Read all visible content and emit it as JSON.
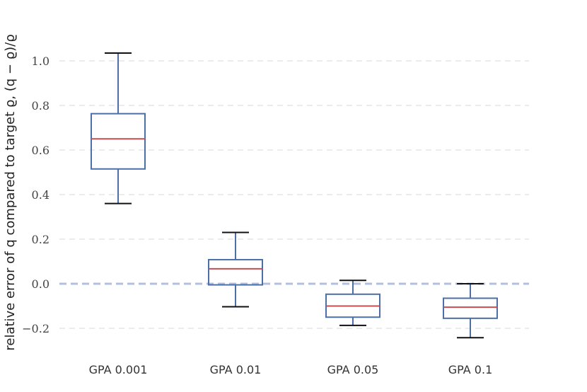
{
  "chart_data": {
    "type": "box",
    "categories": [
      "GPA 0.001",
      "GPA 0.01",
      "GPA 0.05",
      "GPA 0.1"
    ],
    "boxes": [
      {
        "whisker_low": 0.36,
        "q1": 0.515,
        "median": 0.65,
        "q3": 0.763,
        "whisker_high": 1.035
      },
      {
        "whisker_low": -0.103,
        "q1": -0.005,
        "median": 0.067,
        "q3": 0.108,
        "whisker_high": 0.23
      },
      {
        "whisker_low": -0.187,
        "q1": -0.15,
        "median": -0.1,
        "q3": -0.047,
        "whisker_high": 0.015
      },
      {
        "whisker_low": -0.242,
        "q1": -0.155,
        "median": -0.105,
        "q3": -0.065,
        "whisker_high": 0.0
      }
    ],
    "yticks": [
      "−0.2",
      "0.0",
      "0.2",
      "0.4",
      "0.6",
      "0.8",
      "1.0"
    ],
    "ytick_values": [
      -0.2,
      0.0,
      0.2,
      0.4,
      0.6,
      0.8,
      1.0
    ],
    "ylim": [
      -0.3,
      1.1
    ],
    "reference_line": 0.0,
    "ylabel": "relative error of q compared to target ϱ, (q − ϱ)/ϱ",
    "xlabel": "",
    "title": "",
    "grid": "horizontal dashed",
    "colors": {
      "box": "#4c6fa8",
      "median": "#c44e52",
      "cap": "#111111",
      "grid": "#d8d8d8",
      "reference": "#b3c0dd"
    }
  }
}
